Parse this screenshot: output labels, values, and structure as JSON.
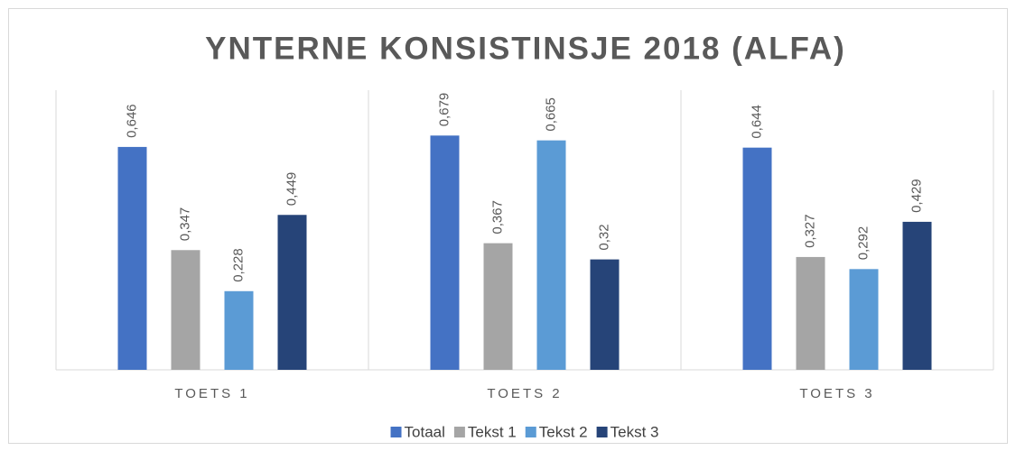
{
  "chart_data": {
    "type": "bar",
    "title": "YNTERNE KONSISTINSJE 2018 (ALFA)",
    "categories": [
      "TOETS 1",
      "TOETS 2",
      "TOETS 3"
    ],
    "series": [
      {
        "name": "Totaal",
        "color": "#4472c4",
        "values": [
          0.646,
          0.679,
          0.644
        ],
        "value_labels": [
          "0,646",
          "0,679",
          "0,644"
        ]
      },
      {
        "name": "Tekst 1",
        "color": "#a5a5a5",
        "values": [
          0.347,
          0.367,
          0.327
        ],
        "value_labels": [
          "0,347",
          "0,367",
          "0,327"
        ]
      },
      {
        "name": "Tekst 2",
        "color": "#5b9bd5",
        "values": [
          0.228,
          0.665,
          0.292
        ],
        "value_labels": [
          "0,228",
          "0,665",
          "0,292"
        ]
      },
      {
        "name": "Tekst 3",
        "color": "#264478",
        "values": [
          0.449,
          0.32,
          0.429
        ],
        "value_labels": [
          "0,449",
          "0,32",
          "0,429"
        ]
      }
    ],
    "ylim": [
      0,
      0.8
    ],
    "legend": "bottom"
  }
}
